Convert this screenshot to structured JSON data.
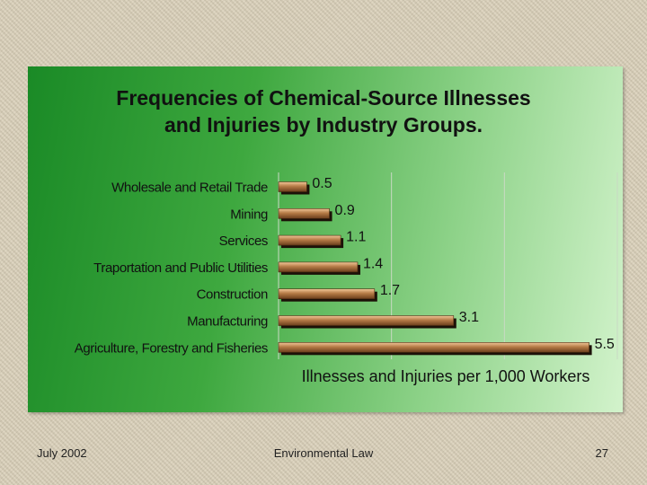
{
  "chart_data": {
    "type": "bar",
    "orientation": "horizontal",
    "title_lines": [
      "Frequencies of Chemical-Source Illnesses",
      "and Injuries by Industry Groups."
    ],
    "xlabel": "Illnesses and Injuries per 1,000 Workers",
    "ylabel": "",
    "categories": [
      "Wholesale and Retail Trade",
      "Mining",
      "Services",
      "Traportation and Public Utilities",
      "Construction",
      "Manufacturing",
      "Agriculture, Forestry and Fisheries"
    ],
    "values": [
      0.5,
      0.9,
      1.1,
      1.4,
      1.7,
      3.1,
      5.5
    ],
    "data_labels": [
      "0.5",
      "0.9",
      "1.1",
      "1.4",
      "1.7",
      "3.1",
      "5.5"
    ],
    "xlim": [
      0,
      6
    ],
    "grid": true,
    "bar_color": "#b07a4a",
    "background_color": "#2e9a33"
  },
  "footer": {
    "date": "July 2002",
    "course": "Environmental Law",
    "page": "27"
  }
}
